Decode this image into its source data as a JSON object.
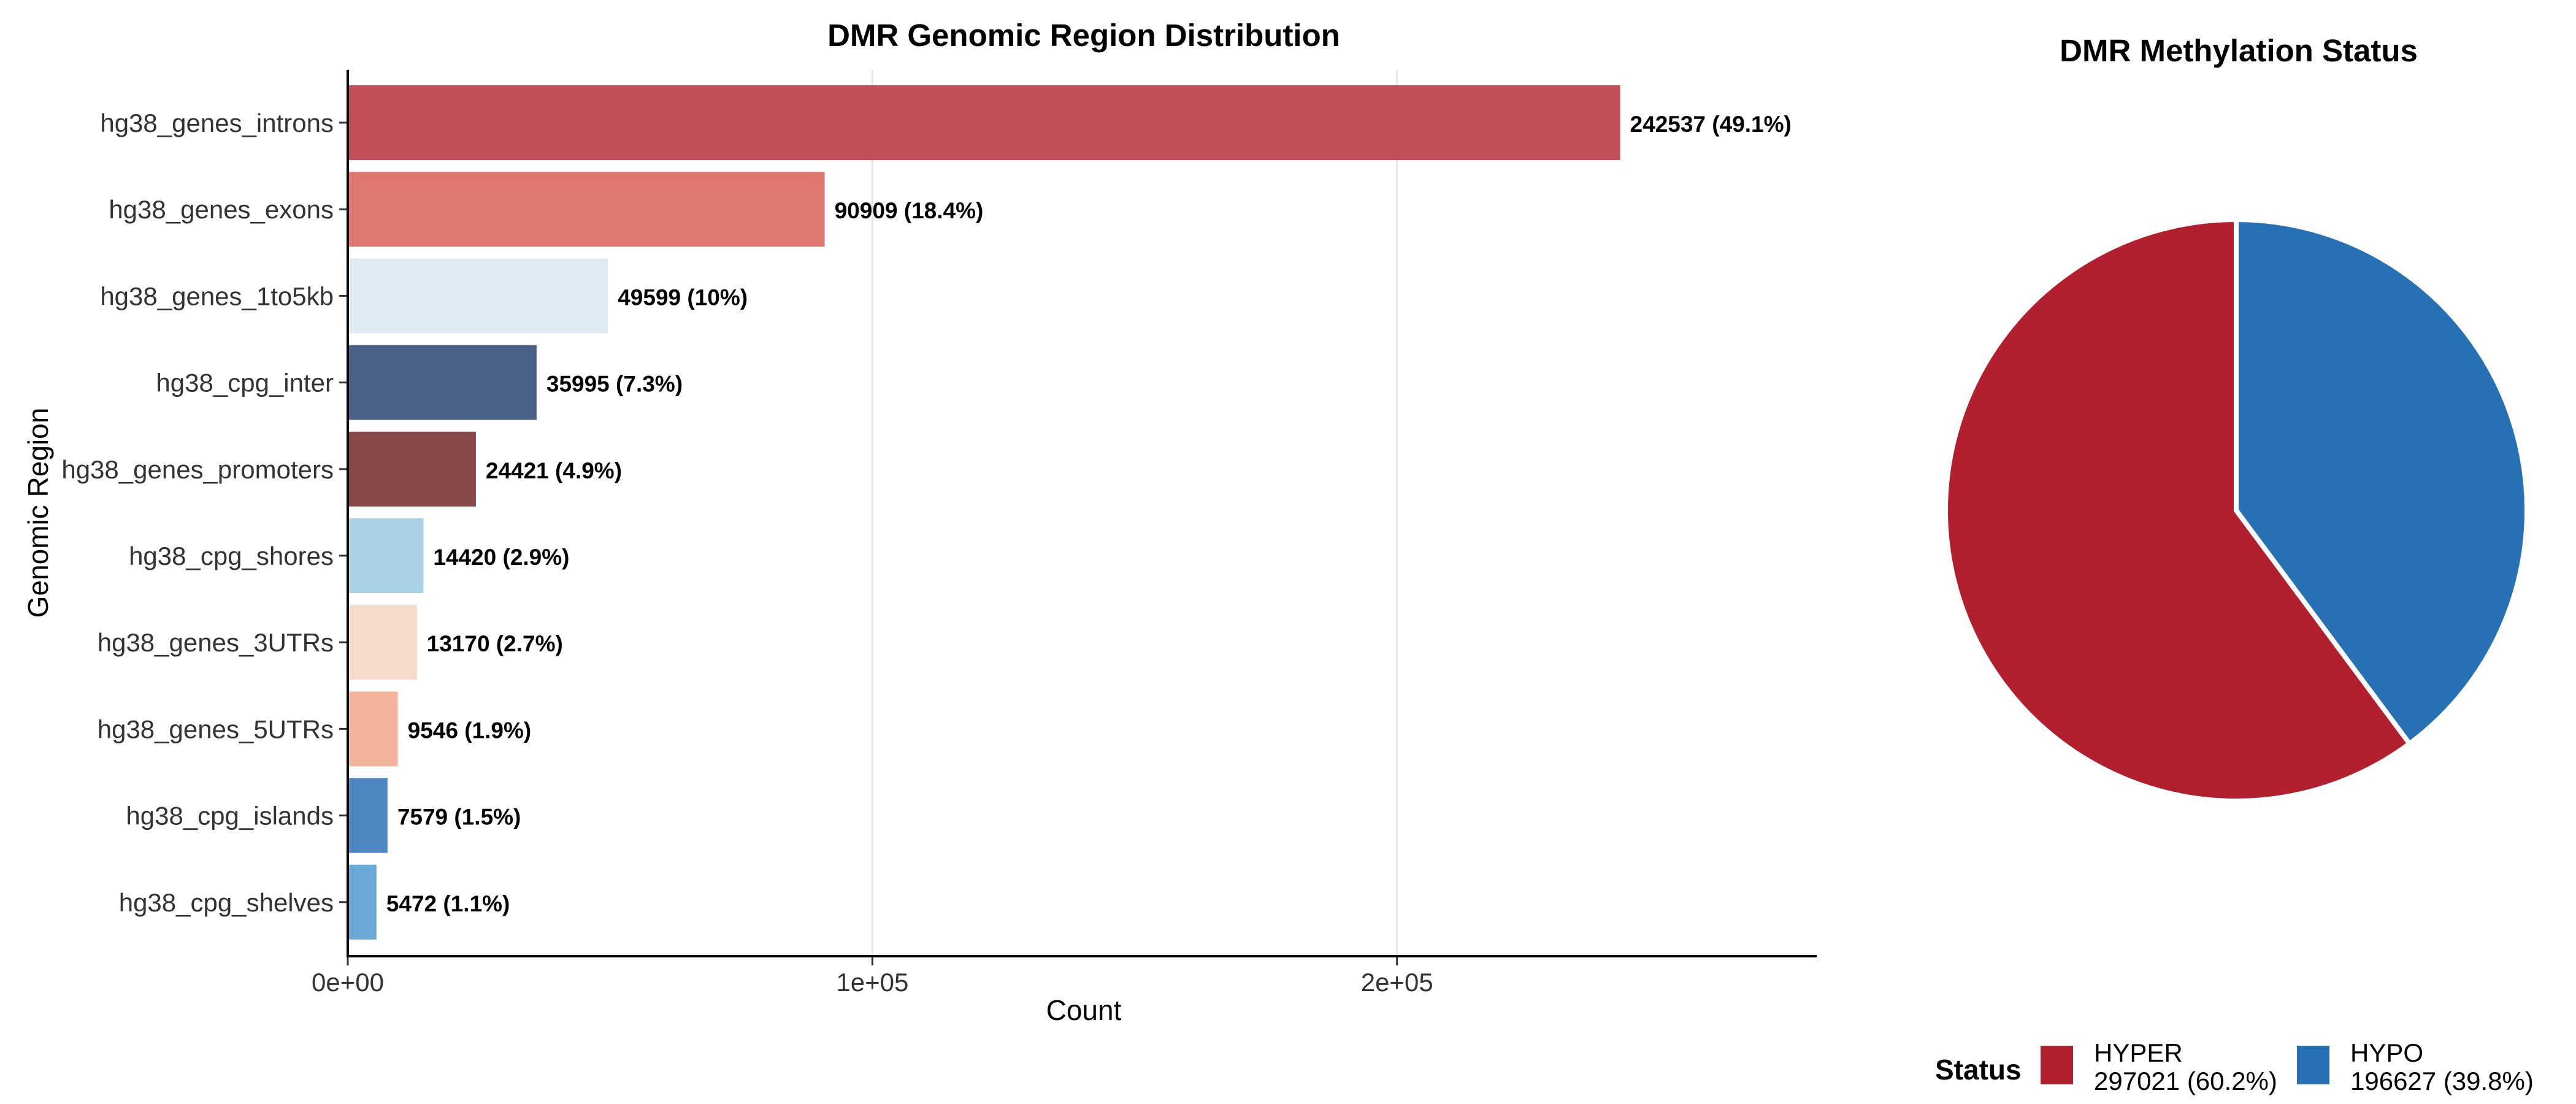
{
  "chart_data": [
    {
      "type": "bar",
      "orientation": "horizontal",
      "title": "DMR Genomic Region Distribution",
      "xlabel": "Count",
      "ylabel": "Genomic Region",
      "xlim": [
        0,
        280000
      ],
      "xticks": [
        0,
        100000,
        200000
      ],
      "xtick_labels": [
        "0e+00",
        "1e+05",
        "2e+05"
      ],
      "grid": "vertical major lines",
      "categories": [
        "hg38_genes_introns",
        "hg38_genes_exons",
        "hg38_genes_1to5kb",
        "hg38_cpg_inter",
        "hg38_genes_promoters",
        "hg38_cpg_shores",
        "hg38_genes_3UTRs",
        "hg38_genes_5UTRs",
        "hg38_cpg_islands",
        "hg38_cpg_shelves"
      ],
      "values": [
        242537,
        90909,
        49599,
        35995,
        24421,
        14420,
        13170,
        9546,
        7579,
        5472
      ],
      "data_labels": [
        "242537 (49.1%)",
        "90909 (18.4%)",
        "49599 (10%)",
        "35995 (7.3%)",
        "24421 (4.9%)",
        "14420 (2.9%)",
        "13170 (2.7%)",
        "9546 (1.9%)",
        "7579 (1.5%)",
        "5472 (1.1%)"
      ],
      "colors": [
        "#c44e58",
        "#e07872",
        "#deeaf1",
        "#4a6189",
        "#8b4a4a",
        "#a9d2e6",
        "#f7dccd",
        "#f2b49a",
        "#4f87c3",
        "#6aa9d6"
      ]
    },
    {
      "type": "pie",
      "title": "DMR Methylation Status",
      "slices": [
        {
          "label": "HYPER",
          "value": 297021,
          "legend_text": "297021 (60.2%)",
          "color": "#b2202f"
        },
        {
          "label": "HYPO",
          "value": 196627,
          "legend_text": "196627 (39.8%)",
          "color": "#2670b3"
        }
      ],
      "legend": {
        "title": "Status",
        "position": "bottom"
      }
    }
  ]
}
